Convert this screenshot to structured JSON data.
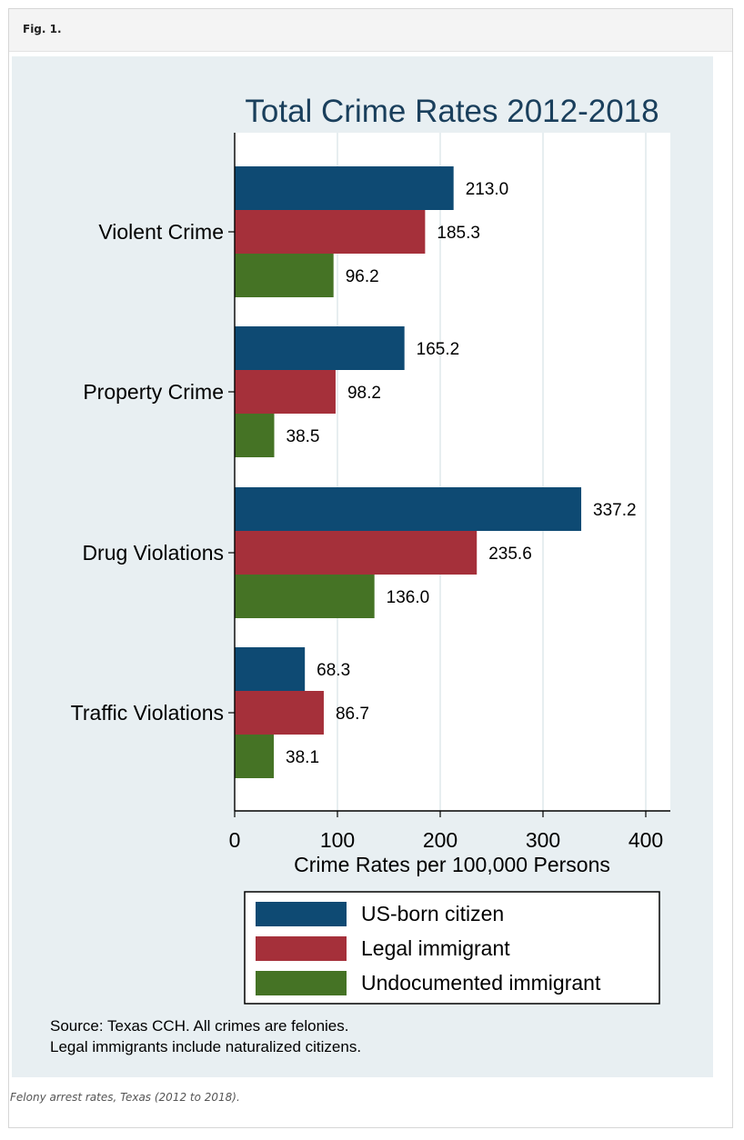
{
  "figure": {
    "label": "Fig. 1.",
    "caption": "Felony arrest rates, Texas (2012 to 2018)."
  },
  "chart_data": {
    "type": "bar",
    "orientation": "horizontal",
    "title": "Total Crime Rates 2012-2018",
    "xlabel": "Crime Rates per 100,000 Persons",
    "ylabel": "",
    "xlim": [
      0,
      400
    ],
    "xticks": [
      "0",
      "100",
      "200",
      "300",
      "400"
    ],
    "grid": true,
    "legend_position": "bottom",
    "categories": [
      "Violent Crime",
      "Property Crime",
      "Drug Violations",
      "Traffic Violations"
    ],
    "series": [
      {
        "name": "US-born citizen",
        "color": "#0e4a73",
        "values": [
          213.0,
          165.2,
          337.2,
          68.3
        ],
        "labels": [
          "213.0",
          "165.2",
          "337.2",
          "68.3"
        ]
      },
      {
        "name": "Legal immigrant",
        "color": "#a5303a",
        "values": [
          185.3,
          98.2,
          235.6,
          86.7
        ],
        "labels": [
          "185.3",
          "98.2",
          "235.6",
          "86.7"
        ]
      },
      {
        "name": "Undocumented immigrant",
        "color": "#457325",
        "values": [
          96.2,
          38.5,
          136.0,
          38.1
        ],
        "labels": [
          "96.2",
          "38.5",
          "136.0",
          "38.1"
        ]
      }
    ],
    "notes": [
      "Source: Texas CCH. All crimes are felonies.",
      "Legal immigrants include naturalized citizens."
    ]
  }
}
